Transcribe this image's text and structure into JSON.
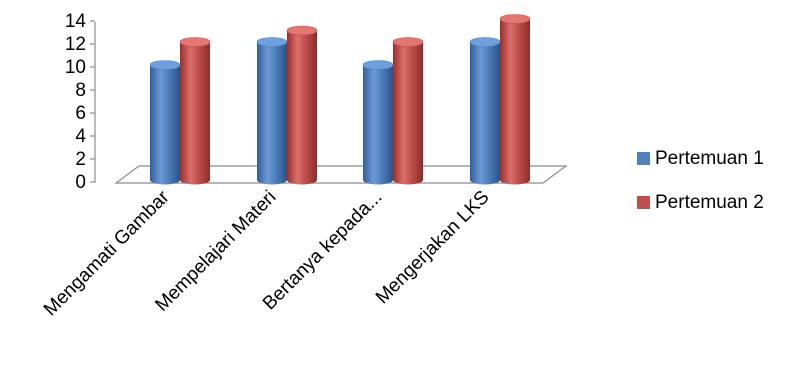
{
  "chart_data": {
    "type": "bar",
    "style": "3d-cylinder",
    "categories": [
      "Mengamati Gambar",
      "Mempelajari Materi",
      "Bertanya kepada...",
      "Mengerjakan LKS"
    ],
    "series": [
      {
        "name": "Pertemuan 1",
        "values": [
          10,
          12,
          10,
          12
        ],
        "color": "#4F81BD"
      },
      {
        "name": "Pertemuan 2",
        "values": [
          12,
          13,
          12,
          14
        ],
        "color": "#C0504D"
      }
    ],
    "yticks": [
      "0",
      "2",
      "4",
      "6",
      "8",
      "10",
      "12",
      "14"
    ],
    "ylim": [
      0,
      14
    ],
    "grid": false,
    "legend_position": "right"
  }
}
